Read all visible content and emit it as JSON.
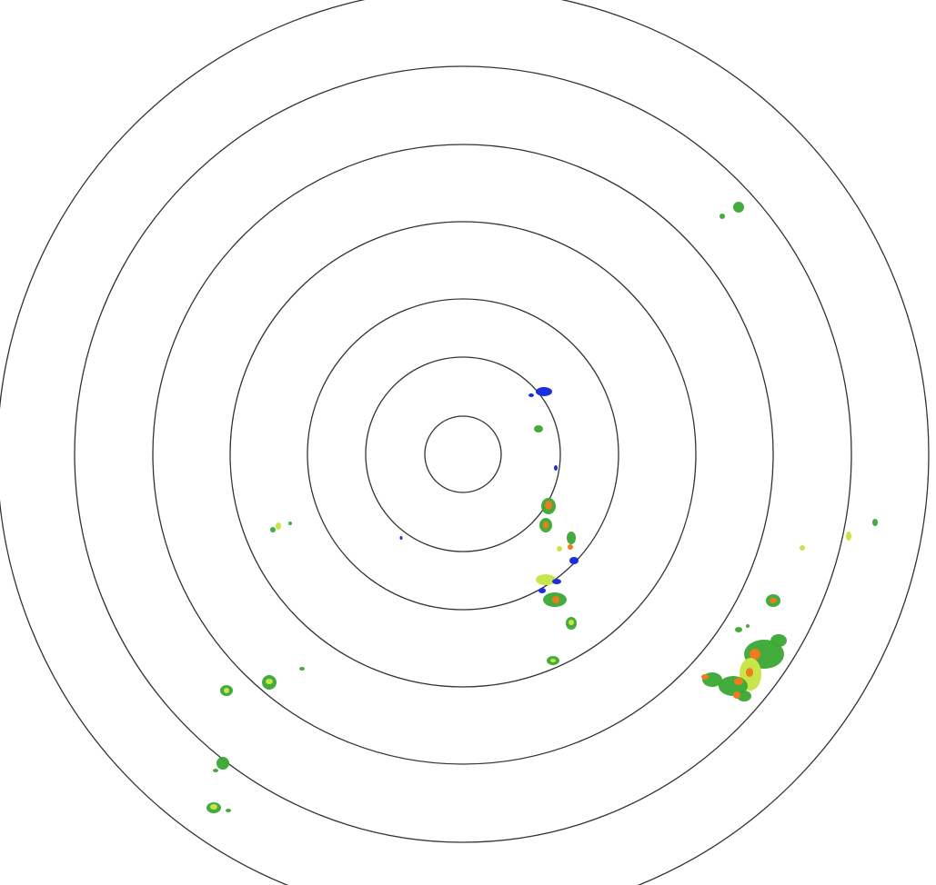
{
  "radar": {
    "range_ring_count": 7,
    "colors": {
      "background": "#ffffff",
      "ring": "#333333",
      "echo_weak": "#1a2ee0",
      "echo_light": "#3aa832",
      "echo_moderate": "#c8e64a",
      "echo_heavy": "#f07a20",
      "echo_intense": "#e02a1a"
    }
  }
}
